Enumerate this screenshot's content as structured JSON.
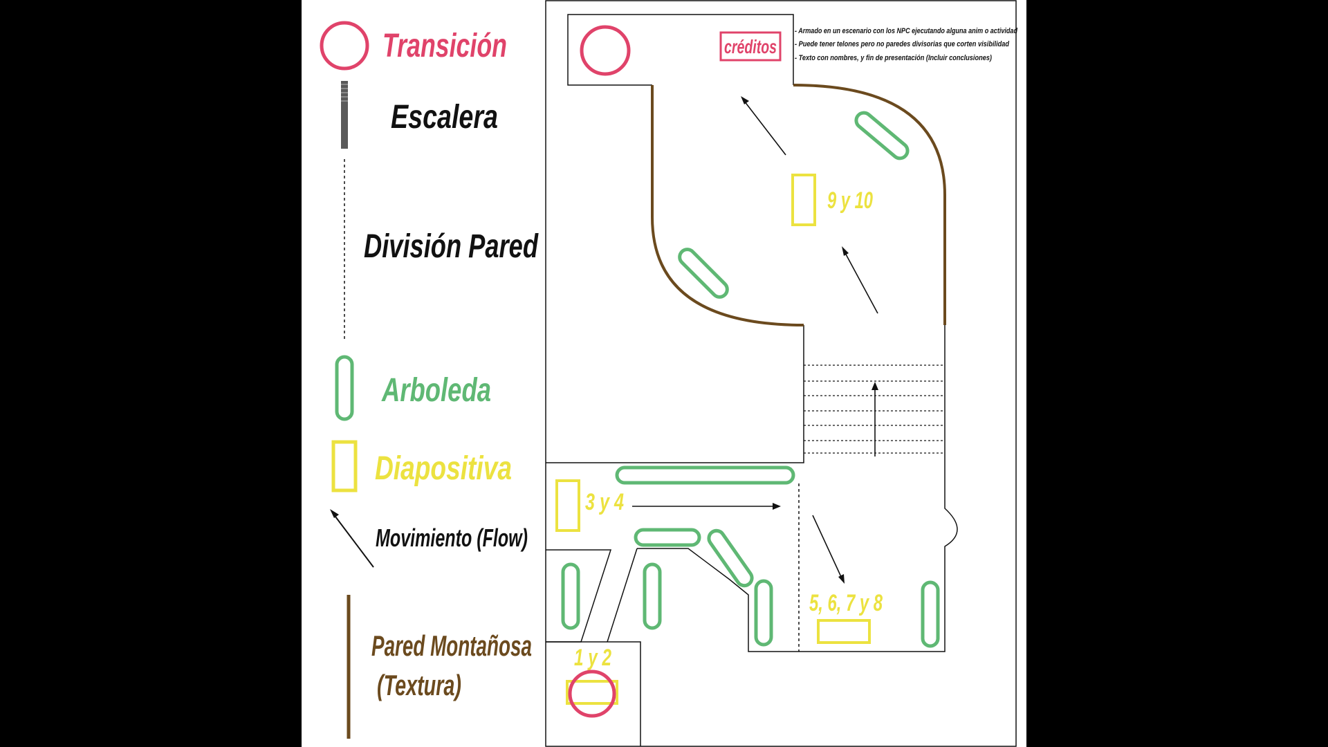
{
  "legend": {
    "transition": "Transición",
    "stairs": "Escalera",
    "wall_division": "División Pared",
    "grove": "Arboleda",
    "slide": "Diapositiva",
    "movement": "Movimiento (Flow)",
    "mountain_wall_line1": "Pared Montañosa",
    "mountain_wall_line2": "(Textura)"
  },
  "notes": [
    "- Armado en un escenario con los NPC ejecutando alguna anim o actividad",
    "- Puede tener telones pero no paredes divisorias que corten visibilidad",
    "- Texto con nombres, y fin de presentación (Incluir conclusiones)"
  ],
  "credits_label": "créditos",
  "slides": {
    "s_1_2": "1 y 2",
    "s_3_4": "3 y 4",
    "s_5_8": "5, 6, 7 y 8",
    "s_9_10": "9 y 10"
  },
  "colors": {
    "transition": "#e0436a",
    "stairs_dark": "#5a5a5a",
    "grove": "#5fb874",
    "slide": "#ece240",
    "mountain_wall": "#6b4a1e",
    "ink": "#111111",
    "paper": "#ffffff"
  }
}
